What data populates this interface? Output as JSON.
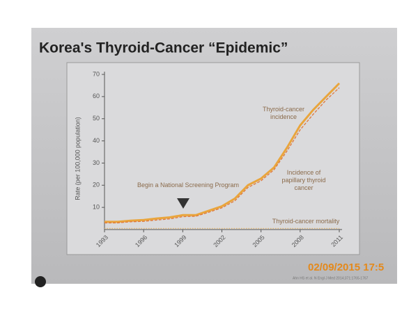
{
  "title": "Korea's Thyroid-Cancer “Epidemic”",
  "chart_data": {
    "type": "line",
    "y_label": "Rate (per 100,000 population)",
    "x": [
      1993,
      1994,
      1995,
      1996,
      1997,
      1998,
      1999,
      2000,
      2001,
      2002,
      2003,
      2004,
      2005,
      2006,
      2007,
      2008,
      2009,
      2010,
      2011
    ],
    "xlim": [
      1993,
      2011
    ],
    "xticks": [
      1993,
      1996,
      1999,
      2002,
      2005,
      2008,
      2011
    ],
    "ylim": [
      0,
      70
    ],
    "yticks": [
      10,
      20,
      30,
      40,
      50,
      60,
      70
    ],
    "series": [
      {
        "name": "Thyroid-cancer incidence",
        "color": "#e9a53c",
        "dash": "solid",
        "values": [
          3.5,
          3.5,
          4,
          4.3,
          5,
          5.5,
          6.5,
          6.5,
          8.5,
          10.5,
          14,
          20,
          23,
          28,
          37,
          47,
          54,
          60,
          66
        ]
      },
      {
        "name": "Incidence of papillary thyroid cancer",
        "color": "#e0773a",
        "dash": "dashed",
        "values": [
          3,
          3,
          3.5,
          3.7,
          4.3,
          4.8,
          5.8,
          6,
          7.8,
          9.8,
          13,
          19,
          22,
          27,
          35.5,
          45,
          52,
          58.5,
          64
        ]
      },
      {
        "name": "Thyroid-cancer mortality",
        "color": "#e6b870",
        "dash": "dotted",
        "values": [
          0.5,
          0.5,
          0.5,
          0.5,
          0.5,
          0.5,
          0.5,
          0.5,
          0.5,
          0.5,
          0.5,
          0.5,
          0.5,
          0.5,
          0.5,
          0.5,
          0.5,
          0.5,
          0.5
        ]
      }
    ],
    "annotation": "Begin a National Screening Program"
  },
  "timestamp": "02/09/2015 17:5",
  "citation": "Ahn HS et al. N Engl J Med 2014;371:1765-1767"
}
